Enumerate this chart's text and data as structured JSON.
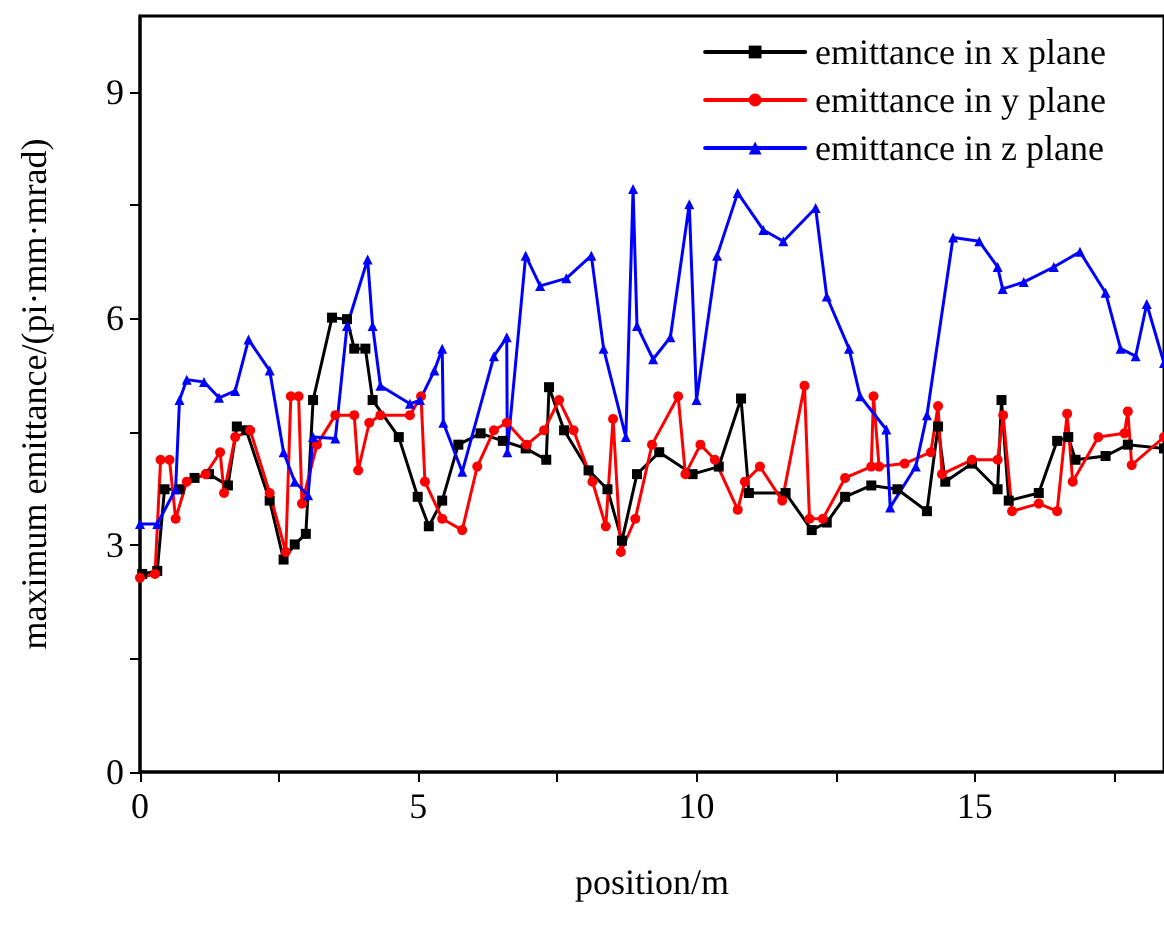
{
  "chart_data": {
    "type": "line",
    "xlabel": "position/m",
    "ylabel": "maximum emittance/(pi·mm·mrad)",
    "xlim": [
      0,
      18.4
    ],
    "ylim": [
      0,
      10
    ],
    "xticks": [
      0,
      {
        "value": 2.5,
        "label": null
      },
      5,
      {
        "value": 7.5,
        "label": null
      },
      10,
      {
        "value": 12.5,
        "label": null
      },
      15,
      {
        "value": 17.5,
        "label": null
      }
    ],
    "yticks": [
      0,
      {
        "value": 1.5,
        "label": null
      },
      3,
      {
        "value": 4.5,
        "label": null
      },
      6,
      {
        "value": 7.5,
        "label": null
      },
      9
    ],
    "legend": "top right",
    "grid": false,
    "line_style": "solid",
    "series": [
      {
        "name": "emittance in x plane",
        "color": "#000000",
        "marker": "square",
        "x": [
          0.04,
          0.31,
          0.44,
          0.71,
          0.98,
          1.24,
          1.58,
          1.74,
          1.91,
          2.33,
          2.58,
          2.78,
          2.98,
          3.11,
          3.45,
          3.72,
          3.85,
          4.05,
          4.18,
          4.65,
          4.99,
          5.19,
          5.43,
          5.72,
          6.12,
          6.52,
          6.93,
          7.3,
          7.35,
          7.62,
          8.06,
          8.4,
          8.66,
          8.93,
          9.33,
          9.93,
          10.4,
          10.8,
          10.94,
          11.6,
          12.07,
          12.34,
          12.67,
          13.14,
          13.61,
          14.14,
          14.34,
          14.47,
          14.95,
          15.41,
          15.48,
          15.61,
          16.15,
          16.48,
          16.68,
          16.81,
          17.35,
          17.75,
          18.4
        ],
        "values": [
          2.62,
          2.66,
          3.74,
          3.74,
          3.89,
          3.94,
          3.79,
          4.57,
          4.52,
          3.59,
          2.81,
          3.01,
          3.15,
          4.92,
          6.01,
          5.99,
          5.6,
          5.6,
          4.92,
          4.43,
          3.64,
          3.25,
          3.59,
          4.33,
          4.48,
          4.38,
          4.28,
          4.13,
          5.09,
          4.52,
          3.99,
          3.74,
          3.06,
          3.94,
          4.23,
          3.94,
          4.04,
          4.94,
          3.69,
          3.69,
          3.2,
          3.3,
          3.64,
          3.79,
          3.74,
          3.45,
          4.57,
          3.84,
          4.08,
          3.74,
          4.92,
          3.59,
          3.69,
          4.38,
          4.43,
          4.13,
          4.18,
          4.33,
          4.28
        ]
      },
      {
        "name": "emittance in y plane",
        "color": "#ff0000",
        "marker": "circle",
        "x": [
          0,
          0.27,
          0.37,
          0.53,
          0.64,
          0.84,
          1.18,
          1.44,
          1.51,
          1.71,
          1.98,
          2.33,
          2.62,
          2.71,
          2.85,
          2.91,
          3.18,
          3.51,
          3.85,
          3.92,
          4.12,
          4.32,
          4.85,
          5.05,
          5.12,
          5.43,
          5.79,
          6.06,
          6.36,
          6.59,
          6.95,
          7.26,
          7.53,
          7.79,
          8.13,
          8.37,
          8.5,
          8.64,
          8.9,
          9.2,
          9.67,
          9.8,
          10.07,
          10.33,
          10.74,
          10.87,
          11.14,
          11.54,
          11.94,
          12.03,
          12.27,
          12.67,
          13.14,
          13.18,
          13.28,
          13.74,
          14.21,
          14.34,
          14.41,
          14.95,
          15.41,
          15.51,
          15.67,
          16.15,
          16.48,
          16.66,
          16.76,
          17.22,
          17.69,
          17.75,
          17.82,
          18.4
        ],
        "values": [
          2.57,
          2.62,
          4.13,
          4.13,
          3.35,
          3.84,
          3.94,
          4.23,
          3.69,
          4.43,
          4.52,
          3.69,
          2.91,
          4.97,
          4.97,
          3.55,
          4.33,
          4.72,
          4.72,
          3.99,
          4.62,
          4.72,
          4.72,
          4.97,
          3.84,
          3.35,
          3.2,
          4.04,
          4.52,
          4.62,
          4.33,
          4.52,
          4.92,
          4.52,
          3.84,
          3.25,
          4.67,
          2.91,
          3.35,
          4.33,
          4.97,
          3.94,
          4.33,
          4.13,
          3.47,
          3.84,
          4.04,
          3.59,
          5.11,
          3.35,
          3.35,
          3.89,
          4.04,
          4.97,
          4.04,
          4.08,
          4.23,
          4.84,
          3.94,
          4.13,
          4.13,
          4.72,
          3.45,
          3.55,
          3.45,
          4.74,
          3.84,
          4.43,
          4.48,
          4.77,
          4.06,
          4.43
        ]
      },
      {
        "name": "emittance in z plane",
        "color": "#0000ff",
        "marker": "triangle",
        "x": [
          0,
          0.31,
          0.64,
          0.71,
          0.84,
          1.15,
          1.42,
          1.71,
          1.95,
          2.33,
          2.58,
          2.78,
          3.02,
          3.11,
          3.51,
          3.72,
          4.09,
          4.18,
          4.32,
          4.85,
          5.03,
          5.29,
          5.43,
          5.45,
          5.79,
          6.36,
          6.59,
          6.6,
          6.93,
          7.19,
          7.66,
          8.11,
          8.33,
          8.73,
          8.86,
          8.93,
          9.22,
          9.53,
          9.87,
          10.0,
          10.37,
          10.74,
          11.2,
          11.56,
          12.14,
          12.34,
          12.74,
          12.94,
          13.41,
          13.48,
          13.94,
          14.14,
          14.61,
          15.08,
          15.41,
          15.5,
          15.88,
          16.42,
          16.89,
          17.35,
          17.62,
          17.89,
          18.09,
          18.4
        ],
        "values": [
          3.28,
          3.28,
          3.74,
          4.92,
          5.19,
          5.16,
          4.95,
          5.04,
          5.72,
          5.31,
          4.23,
          3.84,
          3.66,
          4.43,
          4.41,
          5.9,
          6.78,
          5.9,
          5.11,
          4.87,
          4.92,
          5.31,
          5.6,
          4.62,
          3.97,
          5.5,
          5.75,
          4.23,
          6.83,
          6.43,
          6.53,
          6.83,
          5.6,
          4.43,
          7.71,
          5.9,
          5.46,
          5.75,
          7.51,
          4.92,
          6.83,
          7.66,
          7.17,
          7.02,
          7.46,
          6.29,
          5.6,
          4.97,
          4.53,
          3.5,
          4.04,
          4.72,
          7.07,
          7.02,
          6.68,
          6.39,
          6.48,
          6.68,
          6.88,
          6.34,
          5.6,
          5.5,
          6.19,
          5.41
        ]
      }
    ]
  }
}
